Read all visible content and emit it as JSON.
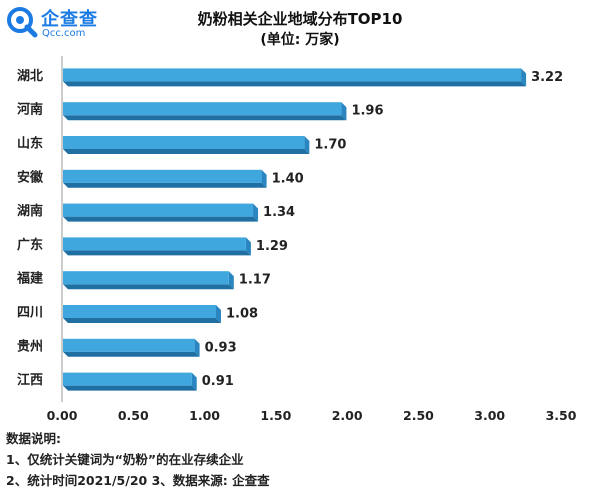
{
  "brand": {
    "name": "企查查",
    "domain": "Qcc.com",
    "color": "#1b7be3"
  },
  "chart_data": {
    "type": "bar",
    "orientation": "horizontal",
    "title": "奶粉相关企业地域分布TOP10",
    "subtitle": "(单位: 万家)",
    "categories": [
      "湖北",
      "河南",
      "山东",
      "安徽",
      "湖南",
      "广东",
      "福建",
      "四川",
      "贵州",
      "江西"
    ],
    "values": [
      3.22,
      1.96,
      1.7,
      1.4,
      1.34,
      1.29,
      1.17,
      1.08,
      0.93,
      0.91
    ],
    "value_labels": [
      "3.22",
      "1.96",
      "1.70",
      "1.40",
      "1.34",
      "1.29",
      "1.17",
      "1.08",
      "0.93",
      "0.91"
    ],
    "x_ticks": [
      "0.00",
      "0.50",
      "1.00",
      "1.50",
      "2.00",
      "2.50",
      "3.00",
      "3.50"
    ],
    "xlim": [
      0,
      3.5
    ],
    "xlabel": "",
    "ylabel": "",
    "grid": false,
    "bar_color": "#3fa6de",
    "bar_shadow_color": "#1f6fa3"
  },
  "notes": {
    "heading": "数据说明:",
    "line1": "1、仅统计关键词为“奶粉”的在业存续企业",
    "line2": "2、统计时间2021/5/20   3、数据来源: 企查查"
  }
}
